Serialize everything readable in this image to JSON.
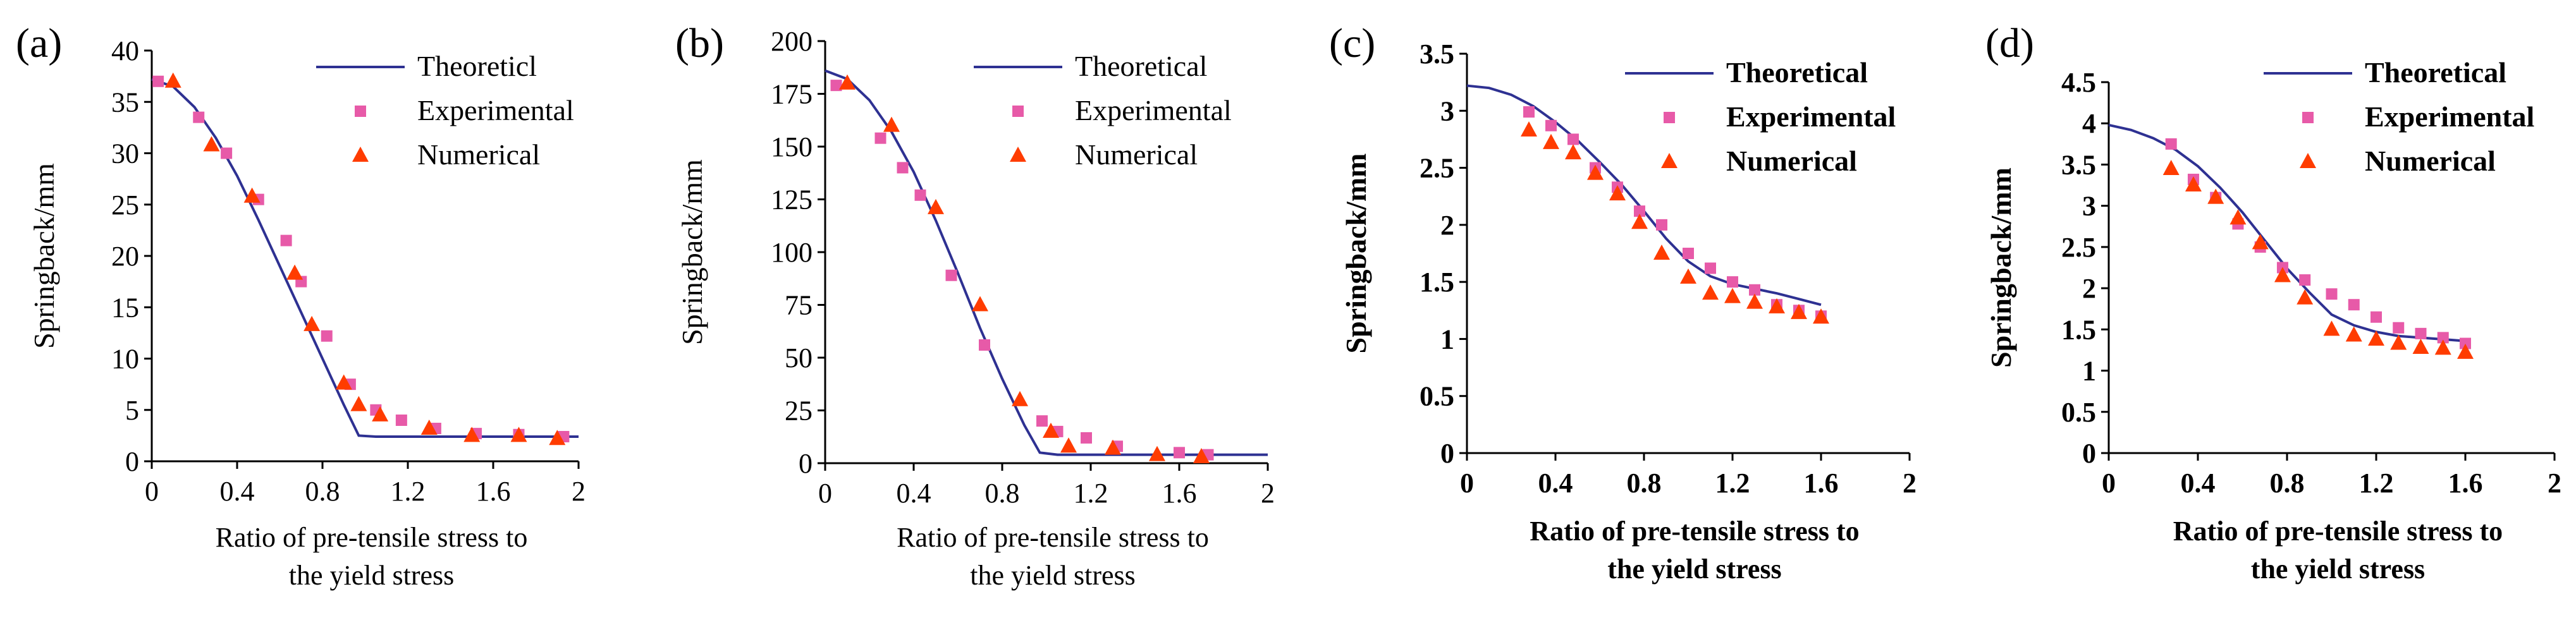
{
  "colors": {
    "theoretical": "#2e3192",
    "experimental": "#e75aa8",
    "numerical": "#ff3c00",
    "axis": "#000000"
  },
  "chart_data": [
    {
      "panel": "(a)",
      "type": "line+scatter",
      "xlabel": [
        "Ratio of pre-tensile stress to",
        "the yield stress"
      ],
      "ylabel": "Springback/mm",
      "xlim": [
        0,
        2
      ],
      "ylim": [
        0,
        40
      ],
      "xticks": [
        "0",
        "0.4",
        "0.8",
        "1.2",
        "1.6",
        "2"
      ],
      "yticks": [
        "0",
        "5",
        "10",
        "15",
        "20",
        "25",
        "30",
        "35",
        "40"
      ],
      "legend": [
        "Theoreticl",
        "Experimental",
        "Numerical"
      ],
      "series": [
        {
          "name": "Theoreticl",
          "kind": "line",
          "x": [
            0,
            0.1,
            0.2,
            0.3,
            0.4,
            0.5,
            0.6,
            0.7,
            0.8,
            0.9,
            0.97,
            1.05,
            1.5,
            2.0
          ],
          "y": [
            37.2,
            36.5,
            34.5,
            31.5,
            27.8,
            23.5,
            19,
            14.5,
            10,
            5.5,
            2.5,
            2.4,
            2.4,
            2.4
          ]
        },
        {
          "name": "Experimental",
          "kind": "square",
          "x": [
            0.03,
            0.22,
            0.35,
            0.5,
            0.63,
            0.7,
            0.82,
            0.93,
            1.05,
            1.17,
            1.33,
            1.52,
            1.72,
            1.93
          ],
          "y": [
            37,
            33.5,
            30,
            25.5,
            21.5,
            17.5,
            12.2,
            7.5,
            5,
            4,
            3.2,
            2.7,
            2.6,
            2.4
          ]
        },
        {
          "name": "Numerical",
          "kind": "triangle",
          "x": [
            0.1,
            0.28,
            0.47,
            0.67,
            0.75,
            0.9,
            0.97,
            1.07,
            1.3,
            1.5,
            1.72,
            1.9
          ],
          "y": [
            37,
            30.8,
            25.8,
            18.3,
            13.3,
            7.6,
            5.5,
            4.5,
            3.2,
            2.5,
            2.5,
            2.2
          ]
        }
      ]
    },
    {
      "panel": "(b)",
      "type": "line+scatter",
      "xlabel": [
        "Ratio of pre-tensile stress to",
        "the yield stress"
      ],
      "ylabel": "Springback/mm",
      "xlim": [
        0,
        2
      ],
      "ylim": [
        0,
        200
      ],
      "xticks": [
        "0",
        "0.4",
        "0.8",
        "1.2",
        "1.6",
        "2"
      ],
      "yticks": [
        "0",
        "25",
        "50",
        "75",
        "100",
        "125",
        "150",
        "175",
        "200"
      ],
      "legend": [
        "Theoretical",
        "Experimental",
        "Numerical"
      ],
      "series": [
        {
          "name": "Theoretical",
          "kind": "line",
          "x": [
            0,
            0.1,
            0.2,
            0.3,
            0.4,
            0.5,
            0.6,
            0.7,
            0.8,
            0.9,
            0.97,
            1.05,
            1.5,
            2.0
          ],
          "y": [
            186,
            182,
            172,
            157,
            138,
            115,
            90,
            64,
            40,
            18,
            5,
            4,
            4,
            4
          ]
        },
        {
          "name": "Experimental",
          "kind": "square",
          "x": [
            0.05,
            0.25,
            0.35,
            0.43,
            0.57,
            0.72,
            0.98,
            1.05,
            1.18,
            1.32,
            1.6,
            1.73
          ],
          "y": [
            179,
            154,
            140,
            127,
            89,
            56,
            20,
            15,
            12,
            8,
            5,
            4
          ]
        },
        {
          "name": "Numerical",
          "kind": "triangle",
          "x": [
            0.1,
            0.3,
            0.5,
            0.7,
            0.88,
            1.02,
            1.1,
            1.3,
            1.5,
            1.7
          ],
          "y": [
            180,
            160,
            121,
            75,
            30,
            15,
            8,
            7,
            4,
            3
          ]
        }
      ]
    },
    {
      "panel": "(c)",
      "type": "line+scatter",
      "xlabel": [
        "Ratio of pre-tensile stress to",
        "the yield stress"
      ],
      "ylabel": "Springback/mm",
      "xlim": [
        0,
        2
      ],
      "ylim": [
        0,
        3.5
      ],
      "xticks": [
        "0",
        "0.4",
        "0.8",
        "1.2",
        "1.6",
        "2"
      ],
      "yticks": [
        "0",
        "0.5",
        "1",
        "1.5",
        "2",
        "2.5",
        "3",
        "3.5"
      ],
      "legend": [
        "Theoretical",
        "Experimental",
        "Numerical"
      ],
      "series": [
        {
          "name": "Theoretical",
          "kind": "line",
          "x": [
            0,
            0.1,
            0.2,
            0.3,
            0.4,
            0.5,
            0.6,
            0.7,
            0.8,
            0.9,
            1.0,
            1.1,
            1.2,
            1.3,
            1.4,
            1.5,
            1.6
          ],
          "y": [
            3.22,
            3.2,
            3.14,
            3.04,
            2.9,
            2.74,
            2.55,
            2.35,
            2.12,
            1.88,
            1.68,
            1.55,
            1.48,
            1.44,
            1.4,
            1.35,
            1.3
          ]
        },
        {
          "name": "Experimental",
          "kind": "square",
          "x": [
            0.28,
            0.38,
            0.48,
            0.58,
            0.68,
            0.78,
            0.88,
            1.0,
            1.1,
            1.2,
            1.3,
            1.4,
            1.5,
            1.6
          ],
          "y": [
            2.99,
            2.87,
            2.75,
            2.5,
            2.33,
            2.12,
            2.0,
            1.75,
            1.62,
            1.5,
            1.43,
            1.3,
            1.25,
            1.2
          ]
        },
        {
          "name": "Numerical",
          "kind": "triangle",
          "x": [
            0.28,
            0.38,
            0.48,
            0.58,
            0.68,
            0.78,
            0.88,
            1.0,
            1.1,
            1.2,
            1.3,
            1.4,
            1.5,
            1.6
          ],
          "y": [
            2.83,
            2.72,
            2.63,
            2.45,
            2.27,
            2.02,
            1.75,
            1.54,
            1.4,
            1.37,
            1.32,
            1.28,
            1.23,
            1.19
          ]
        }
      ]
    },
    {
      "panel": "(d)",
      "type": "line+scatter",
      "xlabel": [
        "Ratio of pre-tensile stress to",
        "the yield stress"
      ],
      "ylabel": "Springback/mm",
      "xlim": [
        0,
        2
      ],
      "ylim": [
        0,
        4.5
      ],
      "xticks": [
        "0",
        "0.4",
        "0.8",
        "1.2",
        "1.6",
        "2"
      ],
      "yticks": [
        "0",
        "0.5",
        "1",
        "1.5",
        "2",
        "2.5",
        "3",
        "3.5",
        "4",
        "4.5"
      ],
      "legend": [
        "Theoretical",
        "Experimental",
        "Numerical"
      ],
      "series": [
        {
          "name": "Theoretical",
          "kind": "line",
          "x": [
            0,
            0.1,
            0.2,
            0.3,
            0.4,
            0.5,
            0.6,
            0.7,
            0.8,
            0.9,
            1.0,
            1.1,
            1.2,
            1.3,
            1.4,
            1.5,
            1.6
          ],
          "y": [
            3.98,
            3.92,
            3.82,
            3.68,
            3.48,
            3.22,
            2.92,
            2.58,
            2.24,
            1.95,
            1.68,
            1.55,
            1.47,
            1.42,
            1.4,
            1.38,
            1.36
          ]
        },
        {
          "name": "Experimental",
          "kind": "square",
          "x": [
            0.28,
            0.38,
            0.48,
            0.58,
            0.68,
            0.78,
            0.88,
            1.0,
            1.1,
            1.2,
            1.3,
            1.4,
            1.5,
            1.6
          ],
          "y": [
            3.75,
            3.32,
            3.1,
            2.78,
            2.5,
            2.25,
            2.1,
            1.93,
            1.8,
            1.65,
            1.52,
            1.45,
            1.4,
            1.33
          ]
        },
        {
          "name": "Numerical",
          "kind": "triangle",
          "x": [
            0.28,
            0.38,
            0.48,
            0.58,
            0.68,
            0.78,
            0.88,
            1.0,
            1.1,
            1.2,
            1.3,
            1.4,
            1.5,
            1.6
          ],
          "y": [
            3.45,
            3.25,
            3.1,
            2.85,
            2.55,
            2.15,
            1.88,
            1.5,
            1.43,
            1.38,
            1.33,
            1.28,
            1.27,
            1.22
          ]
        }
      ]
    }
  ]
}
